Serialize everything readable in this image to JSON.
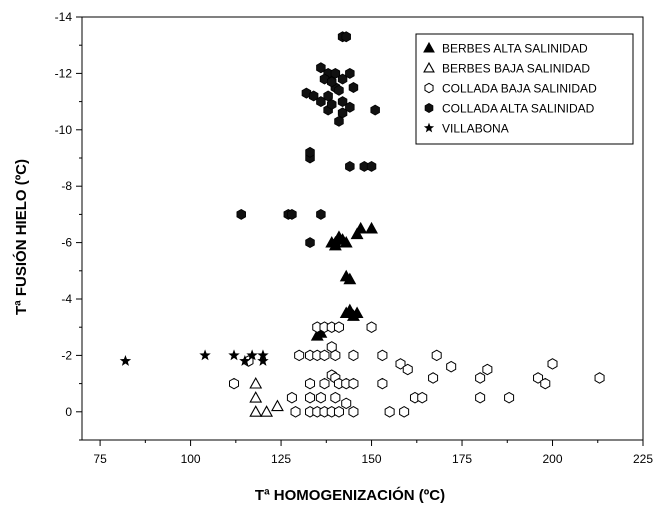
{
  "chart_data": {
    "type": "scatter",
    "title": "",
    "xlabel": "Tª HOMOGENIZACIÓN (ºC)",
    "ylabel": "Tª FUSIÓN HIELO (ºC)",
    "xlim": [
      70,
      225
    ],
    "ylim": [
      1,
      -14
    ],
    "y_axis_inverted": true,
    "x_ticks": [
      75,
      100,
      125,
      150,
      175,
      200,
      225
    ],
    "y_ticks": [
      0,
      -2,
      -4,
      -6,
      -8,
      -10,
      -12,
      -14
    ],
    "grid": false,
    "legend_position": "top-right",
    "series": [
      {
        "name": "BERBES ALTA SALINIDAD",
        "marker": "triangle-filled",
        "points": [
          [
            140,
            -6.0
          ],
          [
            141,
            -6.2
          ],
          [
            142,
            -6.1
          ],
          [
            139,
            -6.0
          ],
          [
            143,
            -6.0
          ],
          [
            140,
            -5.9
          ],
          [
            146,
            -6.3
          ],
          [
            147,
            -6.5
          ],
          [
            150,
            -6.5
          ],
          [
            143,
            -4.8
          ],
          [
            144,
            -4.7
          ],
          [
            143,
            -3.5
          ],
          [
            144,
            -3.5
          ],
          [
            145,
            -3.4
          ],
          [
            146,
            -3.5
          ],
          [
            144,
            -3.6
          ],
          [
            135,
            -2.7
          ],
          [
            136,
            -2.8
          ]
        ]
      },
      {
        "name": "BERBES BAJA SALINIDAD",
        "marker": "triangle-open",
        "points": [
          [
            118,
            -1.0
          ],
          [
            118,
            -0.5
          ],
          [
            118,
            0.0
          ],
          [
            121,
            0.0
          ],
          [
            124,
            -0.2
          ]
        ]
      },
      {
        "name": "COLLADA BAJA SALINIDAD",
        "marker": "circle-open",
        "points": [
          [
            112,
            -1.0
          ],
          [
            116,
            -1.8
          ],
          [
            130,
            -2.0
          ],
          [
            133,
            -2.0
          ],
          [
            135,
            -2.0
          ],
          [
            137,
            -2.0
          ],
          [
            140,
            -2.0
          ],
          [
            145,
            -2.0
          ],
          [
            135,
            -3.0
          ],
          [
            137,
            -3.0
          ],
          [
            139,
            -3.0
          ],
          [
            141,
            -3.0
          ],
          [
            150,
            -3.0
          ],
          [
            139,
            -2.3
          ],
          [
            133,
            -1.0
          ],
          [
            137,
            -1.0
          ],
          [
            139,
            -1.3
          ],
          [
            140,
            -1.2
          ],
          [
            141,
            -1.0
          ],
          [
            143,
            -1.0
          ],
          [
            145,
            -1.0
          ],
          [
            128,
            -0.5
          ],
          [
            133,
            -0.5
          ],
          [
            136,
            -0.5
          ],
          [
            140,
            -0.5
          ],
          [
            143,
            -0.3
          ],
          [
            129,
            0.0
          ],
          [
            133,
            0.0
          ],
          [
            135,
            0.0
          ],
          [
            137,
            0.0
          ],
          [
            139,
            0.0
          ],
          [
            141,
            0.0
          ],
          [
            145,
            0.0
          ],
          [
            153,
            -2.0
          ],
          [
            153,
            -1.0
          ],
          [
            158,
            -1.7
          ],
          [
            160,
            -1.5
          ],
          [
            162,
            -0.5
          ],
          [
            155,
            0.0
          ],
          [
            159,
            0.0
          ],
          [
            164,
            -0.5
          ],
          [
            167,
            -1.2
          ],
          [
            168,
            -2.0
          ],
          [
            172,
            -1.6
          ],
          [
            180,
            -1.2
          ],
          [
            182,
            -1.5
          ],
          [
            180,
            -0.5
          ],
          [
            188,
            -0.5
          ],
          [
            196,
            -1.2
          ],
          [
            198,
            -1.0
          ],
          [
            200,
            -1.7
          ],
          [
            213,
            -1.2
          ]
        ]
      },
      {
        "name": "COLLADA ALTA SALINIDAD",
        "marker": "hexagon-filled",
        "points": [
          [
            114,
            -7.0
          ],
          [
            127,
            -7.0
          ],
          [
            128,
            -7.0
          ],
          [
            136,
            -7.0
          ],
          [
            133,
            -6.0
          ],
          [
            133,
            -9.0
          ],
          [
            133,
            -9.2
          ],
          [
            144,
            -8.7
          ],
          [
            148,
            -8.7
          ],
          [
            150,
            -8.7
          ],
          [
            151,
            -10.7
          ],
          [
            142,
            -13.3
          ],
          [
            143,
            -13.3
          ],
          [
            136,
            -12.2
          ],
          [
            138,
            -12.0
          ],
          [
            140,
            -12.0
          ],
          [
            142,
            -11.8
          ],
          [
            144,
            -12.0
          ],
          [
            145,
            -11.5
          ],
          [
            132,
            -11.3
          ],
          [
            134,
            -11.2
          ],
          [
            136,
            -11.0
          ],
          [
            138,
            -11.2
          ],
          [
            140,
            -11.5
          ],
          [
            142,
            -11.0
          ],
          [
            144,
            -10.8
          ],
          [
            137,
            -11.8
          ],
          [
            139,
            -11.7
          ],
          [
            141,
            -11.4
          ],
          [
            138,
            -10.7
          ],
          [
            142,
            -10.6
          ],
          [
            139,
            -10.9
          ],
          [
            141,
            -10.3
          ]
        ]
      },
      {
        "name": "VILLABONA",
        "marker": "star",
        "points": [
          [
            82,
            -1.8
          ],
          [
            104,
            -2.0
          ],
          [
            112,
            -2.0
          ],
          [
            115,
            -1.8
          ],
          [
            117,
            -2.0
          ],
          [
            120,
            -2.0
          ],
          [
            120,
            -1.8
          ]
        ]
      }
    ]
  }
}
